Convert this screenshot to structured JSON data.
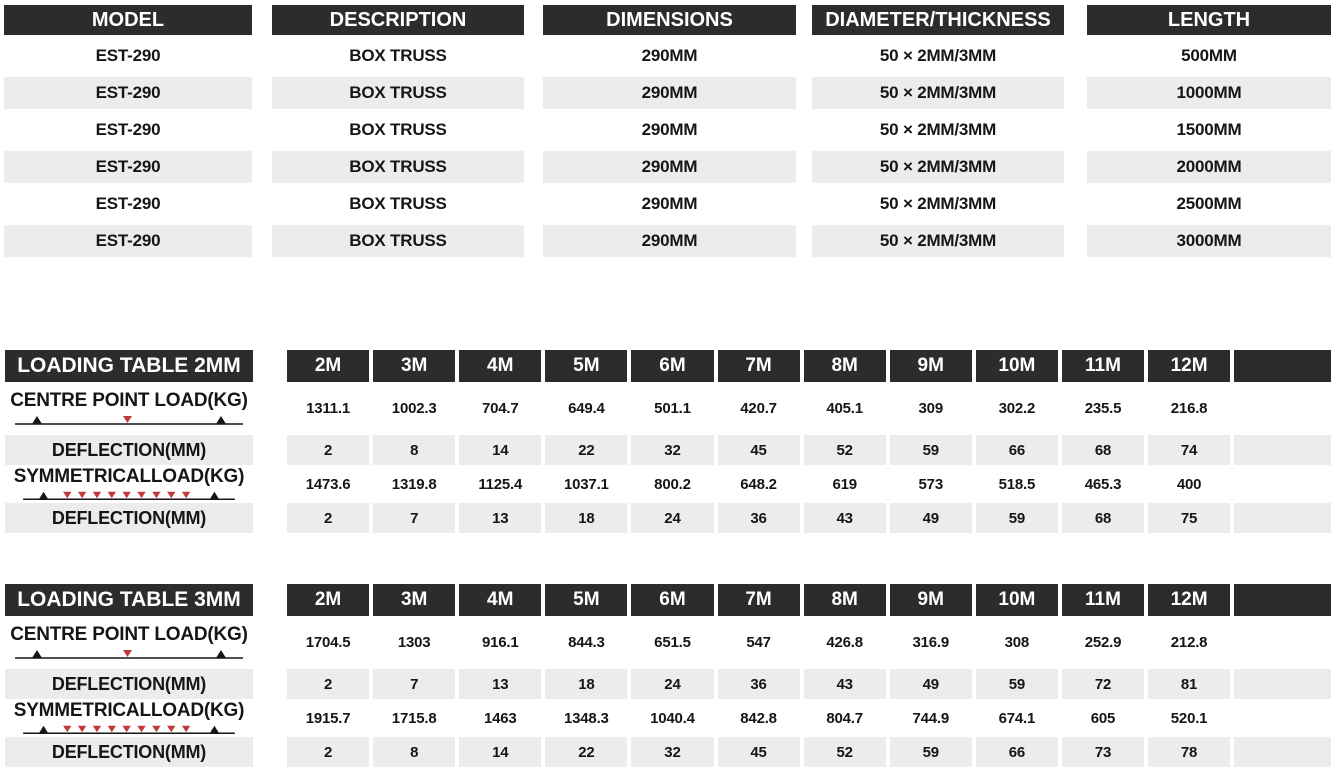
{
  "colors": {
    "header_bg": "#2d2c2b",
    "header_text": "#ffffff",
    "alt_row_bg": "#ececec",
    "body_text": "#161616",
    "load_arrow_red": "#bf3a3d",
    "support_black": "#161616"
  },
  "spec_table": {
    "headers": [
      "MODEL",
      "DESCRIPTION",
      "DIMENSIONS",
      "DIAMETER/THICKNESS",
      "LENGTH"
    ],
    "rows": [
      [
        "EST-290",
        "BOX TRUSS",
        "290MM",
        "50 × 2MM/3MM",
        "500MM"
      ],
      [
        "EST-290",
        "BOX TRUSS",
        "290MM",
        "50 × 2MM/3MM",
        "1000MM"
      ],
      [
        "EST-290",
        "BOX TRUSS",
        "290MM",
        "50 × 2MM/3MM",
        "1500MM"
      ],
      [
        "EST-290",
        "BOX TRUSS",
        "290MM",
        "50 × 2MM/3MM",
        "2000MM"
      ],
      [
        "EST-290",
        "BOX TRUSS",
        "290MM",
        "50 × 2MM/3MM",
        "2500MM"
      ],
      [
        "EST-290",
        "BOX TRUSS",
        "290MM",
        "50 × 2MM/3MM",
        "3000MM"
      ]
    ]
  },
  "loading_tables": [
    {
      "title": "LOADING TABLE 2MM",
      "columns": [
        "2M",
        "3M",
        "4M",
        "5M",
        "6M",
        "7M",
        "8M",
        "9M",
        "10M",
        "11M",
        "12M",
        ""
      ],
      "rows": [
        {
          "label": "CENTRE POINT LOAD(KG)",
          "diagram": "centre-point-load-icon",
          "values": [
            1311.1,
            1002.3,
            704.7,
            649.4,
            501.1,
            420.7,
            405.1,
            309,
            302.2,
            235.5,
            216.8
          ]
        },
        {
          "label": "DEFLECTION(MM)",
          "diagram": null,
          "values": [
            2,
            8,
            14,
            22,
            32,
            45,
            52,
            59,
            66,
            68,
            74
          ]
        },
        {
          "label": "SYMMETRICALLOAD(KG)",
          "diagram": "symmetrical-load-icon",
          "values": [
            1473.6,
            1319.8,
            1125.4,
            1037.1,
            800.2,
            648.2,
            619,
            573,
            518.5,
            465.3,
            400
          ]
        },
        {
          "label": "DEFLECTION(MM)",
          "diagram": null,
          "values": [
            2,
            7,
            13,
            18,
            24,
            36,
            43,
            49,
            59,
            68,
            75
          ]
        }
      ]
    },
    {
      "title": "LOADING TABLE 3MM",
      "columns": [
        "2M",
        "3M",
        "4M",
        "5M",
        "6M",
        "7M",
        "8M",
        "9M",
        "10M",
        "11M",
        "12M",
        ""
      ],
      "rows": [
        {
          "label": "CENTRE POINT LOAD(KG)",
          "diagram": "centre-point-load-icon",
          "values": [
            1704.5,
            1303,
            916.1,
            844.3,
            651.5,
            547,
            426.8,
            316.9,
            308,
            252.9,
            212.8
          ]
        },
        {
          "label": "DEFLECTION(MM)",
          "diagram": null,
          "values": [
            2,
            7,
            13,
            18,
            24,
            36,
            43,
            49,
            59,
            72,
            81
          ]
        },
        {
          "label": "SYMMETRICALLOAD(KG)",
          "diagram": "symmetrical-load-icon",
          "values": [
            1915.7,
            1715.8,
            1463,
            1348.3,
            1040.4,
            842.8,
            804.7,
            744.9,
            674.1,
            605,
            520.1
          ]
        },
        {
          "label": "DEFLECTION(MM)",
          "diagram": null,
          "values": [
            2,
            8,
            14,
            22,
            32,
            45,
            52,
            59,
            66,
            73,
            78
          ]
        }
      ]
    }
  ]
}
